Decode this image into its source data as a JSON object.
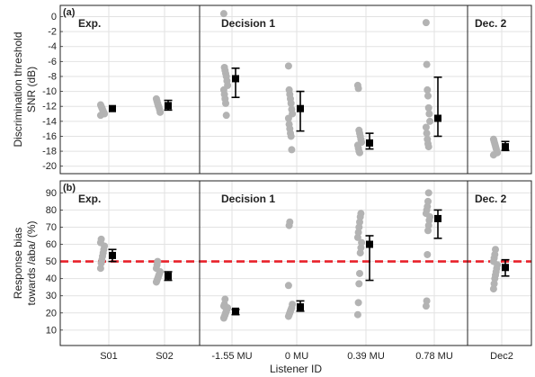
{
  "chart_data": [
    {
      "type": "scatter",
      "panel_label": "(a)",
      "ylabel": [
        "Discrimination threshold",
        "SNR (dB)"
      ],
      "ylim": [
        -21,
        1.5
      ],
      "yticks": [
        0,
        -2,
        -4,
        -6,
        -8,
        -10,
        -12,
        -14,
        -16,
        -18,
        -20
      ],
      "ytick_labels": [
        "0",
        "-2",
        "-4",
        "-6",
        "-8",
        "-10",
        "-12",
        "-14",
        "-16",
        "-18",
        "-20"
      ],
      "grid": true,
      "section_labels": [
        "Exp.",
        "Decision 1",
        "Dec. 2"
      ],
      "categories": [
        "S01",
        "S02",
        "-1.55 MU",
        "0 MU",
        "0.39 MU",
        "0.78 MU",
        "Dec2"
      ],
      "individual_points": [
        [
          -11.8,
          -12.0,
          -12.2,
          -12.4,
          -12.6,
          -12.8,
          -13.0,
          -13.2
        ],
        [
          -11.0,
          -11.3,
          -11.6,
          -11.9,
          -12.1,
          -12.4,
          -12.8
        ],
        [
          0.4,
          -6.8,
          -7.2,
          -7.6,
          -8.0,
          -8.6,
          -9.2,
          -9.8,
          -10.4,
          -11.0,
          -11.6,
          -13.2
        ],
        [
          -6.6,
          -9.8,
          -10.4,
          -11.0,
          -11.6,
          -12.4,
          -13.0,
          -13.6,
          -14.4,
          -15.0,
          -15.6,
          -16.0,
          -17.8
        ],
        [
          -9.2,
          -9.6,
          -15.2,
          -15.6,
          -16.0,
          -16.4,
          -16.8,
          -17.2,
          -17.6,
          -18.0,
          -18.2
        ],
        [
          -0.8,
          -6.4,
          -9.8,
          -10.6,
          -12.2,
          -13.0,
          -14.0,
          -14.8,
          -15.6,
          -16.4,
          -17.0,
          -17.4
        ],
        [
          -16.4,
          -16.7,
          -17.0,
          -17.3,
          -17.6,
          -17.9,
          -18.2,
          -18.5
        ]
      ],
      "mean": [
        -12.3,
        -11.9,
        -8.3,
        -12.3,
        -16.9,
        -13.6,
        -17.4
      ],
      "err_low": [
        -12.3,
        -12.5,
        -10.8,
        -15.3,
        -17.7,
        -16.0,
        -17.9
      ],
      "err_high": [
        -12.3,
        -11.2,
        -6.9,
        -10.0,
        -15.6,
        -8.1,
        -16.7
      ]
    },
    {
      "type": "scatter",
      "panel_label": "(b)",
      "ylabel": [
        "Response bias",
        "towards /aba/ (%)"
      ],
      "ylim": [
        1,
        97
      ],
      "yticks": [
        10,
        20,
        30,
        40,
        50,
        60,
        70,
        80,
        90
      ],
      "ytick_labels": [
        "10",
        "20",
        "30",
        "40",
        "50",
        "60",
        "70",
        "80",
        "90"
      ],
      "grid": true,
      "section_labels": [
        "Exp.",
        "Decision 1",
        "Dec. 2"
      ],
      "reference_line": 50,
      "categories": [
        "S01",
        "S02",
        "-1.55 MU",
        "0 MU",
        "0.39 MU",
        "0.78 MU",
        "Dec2"
      ],
      "xlabel": "Listener ID",
      "individual_points": [
        [
          46,
          49,
          51,
          53,
          55,
          57,
          59,
          61,
          63
        ],
        [
          38,
          39,
          40,
          41,
          42,
          43,
          44,
          46,
          48,
          50
        ],
        [
          17,
          18,
          19,
          20,
          21,
          22,
          23,
          24,
          25,
          28
        ],
        [
          18,
          19,
          20,
          21,
          22,
          23,
          25,
          36,
          71,
          73
        ],
        [
          19,
          26,
          37,
          43,
          55,
          58,
          61,
          64,
          67,
          70,
          73,
          76,
          78
        ],
        [
          24,
          27,
          54,
          68,
          71,
          74,
          76,
          78,
          80,
          82,
          85,
          90
        ],
        [
          34,
          37,
          40,
          42,
          44,
          46,
          48,
          50,
          52,
          54,
          57
        ]
      ],
      "mean": [
        53.5,
        41.5,
        21,
        23.5,
        60,
        75,
        46.5
      ],
      "err_low": [
        50,
        39,
        19,
        21,
        39,
        63.5,
        41.5
      ],
      "err_high": [
        57,
        44,
        22,
        27,
        65,
        80,
        51
      ]
    }
  ],
  "colors": {
    "points": "#b3b3b3",
    "mean": "#000000",
    "reference_line": "#e8212a",
    "grid": "#e2e2e2"
  }
}
